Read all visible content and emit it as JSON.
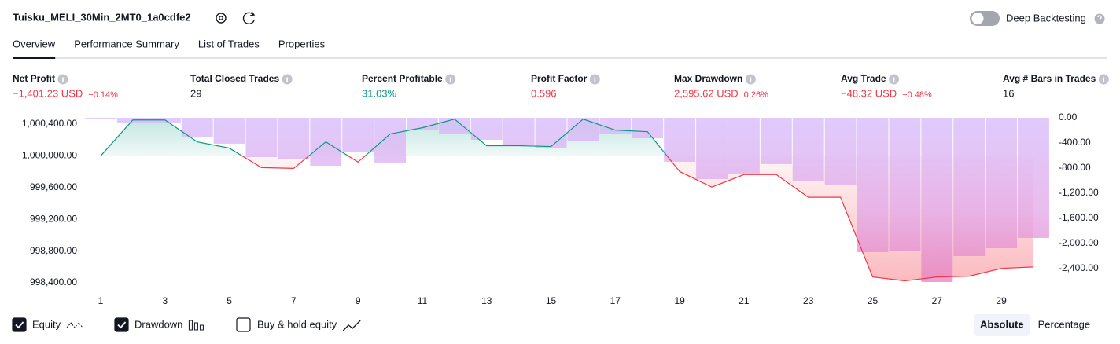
{
  "header": {
    "title": "Tuisku_MELI_30Min_2MT0_1a0cdfe2",
    "toggle_label": "Deep Backtesting"
  },
  "tabs": [
    {
      "label": "Overview",
      "selected": true
    },
    {
      "label": "Performance Summary",
      "selected": false
    },
    {
      "label": "List of Trades",
      "selected": false
    },
    {
      "label": "Properties",
      "selected": false
    }
  ],
  "metrics": [
    {
      "label": "Net Profit",
      "value": "−1,401.23 USD",
      "change": "−0.14%",
      "color": "#f23645"
    },
    {
      "label": "Total Closed Trades",
      "value": "29",
      "color": "#131722"
    },
    {
      "label": "Percent Profitable",
      "value": "31.03%",
      "color": "#089981"
    },
    {
      "label": "Profit Factor",
      "value": "0.596",
      "color": "#f23645"
    },
    {
      "label": "Max Drawdown",
      "value": "2,595.62 USD",
      "change": "0.26%",
      "color": "#f23645"
    },
    {
      "label": "Avg Trade",
      "value": "−48.32 USD",
      "change": "−0.48%",
      "color": "#f23645"
    },
    {
      "label": "Avg # Bars in Trades",
      "value": "16",
      "color": "#131722"
    }
  ],
  "chart_data": {
    "type": "combo",
    "x": [
      1,
      2,
      3,
      4,
      5,
      6,
      7,
      8,
      9,
      10,
      11,
      12,
      13,
      14,
      15,
      16,
      17,
      18,
      19,
      20,
      21,
      22,
      23,
      24,
      25,
      26,
      27,
      28,
      29,
      30
    ],
    "xlim": [
      1,
      30
    ],
    "xticks": [
      1,
      3,
      5,
      7,
      9,
      11,
      13,
      15,
      17,
      19,
      21,
      23,
      25,
      27,
      29
    ],
    "ylim": [
      998380,
      1000480
    ],
    "yticks": [
      {
        "value": 1000400,
        "label": "1,000,400.00"
      },
      {
        "value": 1000000,
        "label": "1,000,000.00"
      },
      {
        "value": 999600,
        "label": "999,600.00"
      },
      {
        "value": 999200,
        "label": "999,200.00"
      },
      {
        "value": 998800,
        "label": "998,800.00"
      },
      {
        "value": 998400,
        "label": "998,400.00"
      }
    ],
    "y2lim": [
      -2650,
      0
    ],
    "y2ticks": [
      {
        "value": 0,
        "label": "0.00"
      },
      {
        "value": -400,
        "label": "-400.00"
      },
      {
        "value": -800,
        "label": "-800.00"
      },
      {
        "value": -1200,
        "label": "-1,200.00"
      },
      {
        "value": -1600,
        "label": "-1,600.00"
      },
      {
        "value": -2000,
        "label": "-2,000.00"
      },
      {
        "value": -2400,
        "label": "-2,400.00"
      }
    ],
    "series": [
      {
        "name": "Equity",
        "type": "line",
        "checked": true,
        "color": "#089981",
        "negative_color": "#f23645",
        "values": [
          1000000,
          1000453,
          1000453,
          1000177,
          1000098,
          999852,
          999842,
          1000177,
          999921,
          1000276,
          1000355,
          1000463,
          1000128,
          1000128,
          1000118,
          1000463,
          1000325,
          1000305,
          999803,
          999606,
          999764,
          999764,
          999478,
          999478,
          998473,
          998424,
          998473,
          998483,
          998581,
          998599
        ]
      },
      {
        "name": "Drawdown",
        "type": "bar",
        "axis": "y2",
        "checked": true,
        "color": "#c9a6f7",
        "values": [
          -12,
          -75,
          -75,
          -300,
          -412,
          -625,
          -662,
          -762,
          -550,
          -712,
          -200,
          -262,
          -350,
          -437,
          -487,
          -375,
          -262,
          -325,
          -700,
          -975,
          -900,
          -737,
          -1000,
          -1062,
          -2137,
          -2112,
          -2612,
          -2200,
          -2075,
          -1912
        ]
      }
    ],
    "extra_legend": {
      "name": "Buy & hold equity",
      "checked": false
    }
  },
  "scale_modes": [
    {
      "label": "Absolute",
      "selected": true
    },
    {
      "label": "Percentage",
      "selected": false
    }
  ]
}
